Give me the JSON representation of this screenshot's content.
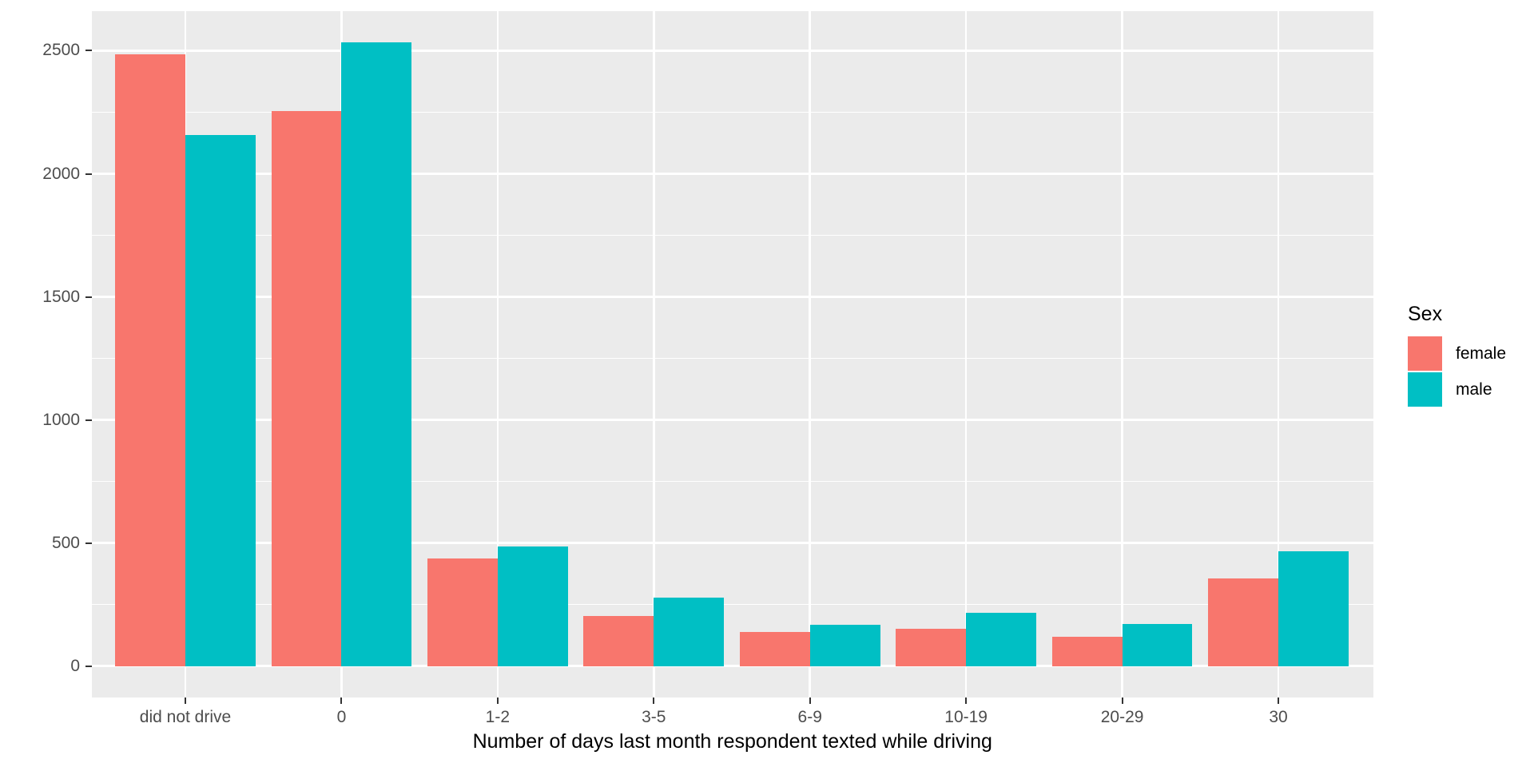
{
  "chart_data": {
    "type": "bar",
    "title": "",
    "xlabel": "Number of days last month respondent texted while driving",
    "ylabel": "",
    "categories": [
      "did not drive",
      "0",
      "1-2",
      "3-5",
      "6-9",
      "10-19",
      "20-29",
      "30"
    ],
    "series": [
      {
        "name": "female",
        "color": "#F8766D",
        "values": [
          2485,
          2255,
          436,
          205,
          138,
          150,
          120,
          357
        ]
      },
      {
        "name": "male",
        "color": "#00BFC4",
        "values": [
          2157,
          2533,
          485,
          278,
          167,
          215,
          170,
          467
        ]
      }
    ],
    "y_ticks": [
      0,
      500,
      1000,
      1500,
      2000,
      2500
    ],
    "y_tick_labels": [
      "0",
      "500",
      "1000",
      "1500",
      "2000",
      "2500"
    ],
    "y_minor_ticks": [
      250,
      750,
      1250,
      1750,
      2250
    ],
    "ylim": [
      0,
      2660
    ],
    "grid": "on",
    "legend": {
      "title": "Sex",
      "position": "right",
      "entries": [
        "female",
        "male"
      ]
    },
    "colors": {
      "panel_background": "#EBEBEB",
      "grid": "#FFFFFF",
      "axis_text": "#4D4D4D",
      "axis_title": "#000000",
      "tick_mark": "#333333"
    }
  }
}
